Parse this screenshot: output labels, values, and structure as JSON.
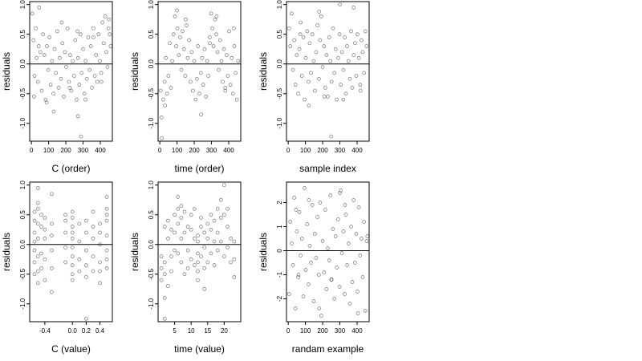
{
  "chart_data": [
    {
      "type": "scatter",
      "xlabel": "C (order)",
      "ylabel": "residuals",
      "xlim": [
        -10,
        470
      ],
      "ylim": [
        -1.3,
        1.05
      ],
      "xticks": [
        0,
        100,
        200,
        300,
        400
      ],
      "xtick_labels": [
        "0",
        "100",
        "200",
        "300",
        "400"
      ],
      "yticks": [
        1.0,
        0.5,
        0.0,
        -0.5,
        -1.0
      ],
      "ytick_labels": [
        "1.0",
        "0.5",
        "0.0",
        "-0.5",
        "-1.0"
      ],
      "hline": 0,
      "grid": false,
      "points": {
        "x": [
          5,
          12,
          18,
          25,
          30,
          38,
          45,
          52,
          60,
          68,
          75,
          82,
          90,
          98,
          105,
          112,
          120,
          128,
          135,
          142,
          150,
          158,
          165,
          172,
          180,
          188,
          195,
          202,
          210,
          218,
          225,
          232,
          240,
          248,
          255,
          262,
          270,
          278,
          285,
          292,
          300,
          308,
          315,
          322,
          330,
          338,
          345,
          352,
          360,
          368,
          375,
          382,
          390,
          398,
          405,
          412,
          420,
          428,
          435,
          442,
          450,
          455,
          460,
          15,
          42,
          88,
          130,
          176,
          222,
          268,
          314,
          360,
          406,
          448,
          270,
          288
        ],
        "y": [
          0.85,
          0.4,
          -0.2,
          0.6,
          0.1,
          -0.3,
          0.95,
          0.2,
          -0.45,
          0.5,
          0.15,
          -0.6,
          0.3,
          -0.1,
          0.45,
          -0.35,
          0.05,
          -0.5,
          0.25,
          -0.15,
          0.55,
          -0.4,
          0.1,
          -0.25,
          0.35,
          -0.55,
          0.2,
          -0.05,
          0.6,
          -0.3,
          0.15,
          -0.45,
          0.05,
          -0.2,
          0.4,
          -0.6,
          0.1,
          -0.35,
          0.5,
          -0.15,
          0.25,
          -0.5,
          0.05,
          -0.25,
          0.45,
          -0.1,
          0.3,
          -0.4,
          0.6,
          -0.2,
          0.15,
          -0.3,
          0.5,
          0.05,
          -0.15,
          0.7,
          0.35,
          0.8,
          0.2,
          -0.05,
          0.75,
          0.5,
          0.3,
          -0.55,
          0.3,
          -0.65,
          -0.8,
          0.7,
          -0.4,
          0.55,
          -0.6,
          0.45,
          -0.3,
          0.6,
          -0.88,
          -1.22
        ]
      }
    },
    {
      "type": "scatter",
      "xlabel": "time (order)",
      "ylabel": "residuals",
      "xlim": [
        -10,
        470
      ],
      "ylim": [
        -1.3,
        1.05
      ],
      "xticks": [
        0,
        100,
        200,
        300,
        400
      ],
      "xtick_labels": [
        "0",
        "100",
        "200",
        "300",
        "400"
      ],
      "yticks": [
        1.0,
        0.5,
        0.0,
        -0.5,
        -1.0
      ],
      "ytick_labels": [
        "1.0",
        "0.5",
        "0.0",
        "-0.5",
        "-1.0"
      ],
      "hline": 0,
      "grid": false,
      "points": {
        "x": [
          5,
          12,
          20,
          28,
          35,
          42,
          50,
          58,
          65,
          72,
          80,
          88,
          95,
          102,
          110,
          118,
          125,
          132,
          140,
          148,
          155,
          162,
          170,
          178,
          185,
          192,
          200,
          208,
          215,
          222,
          230,
          238,
          245,
          252,
          260,
          268,
          275,
          282,
          290,
          298,
          305,
          312,
          320,
          328,
          335,
          342,
          350,
          358,
          365,
          372,
          380,
          388,
          395,
          402,
          410,
          418,
          425,
          432,
          440,
          448,
          455,
          10,
          30,
          100,
          150,
          240,
          290,
          330,
          380,
          430
        ],
        "y": [
          -0.45,
          -1.25,
          -0.6,
          -0.3,
          0.1,
          -0.5,
          -0.2,
          0.35,
          -0.4,
          0.05,
          0.5,
          0.8,
          0.3,
          0.6,
          0.15,
          0.45,
          -0.1,
          0.55,
          0.25,
          -0.2,
          0.65,
          0.1,
          0.4,
          -0.3,
          0.2,
          -0.45,
          0.05,
          -0.6,
          -0.25,
          0.3,
          -0.5,
          -0.15,
          0.1,
          -0.35,
          0.25,
          -0.55,
          0.05,
          -0.2,
          0.45,
          0.85,
          0.6,
          0.3,
          0.75,
          0.5,
          0.2,
          -0.1,
          0.4,
          0.05,
          -0.3,
          0.25,
          -0.45,
          0.15,
          -0.2,
          0.55,
          -0.35,
          0.1,
          -0.5,
          0.3,
          -0.15,
          -0.6,
          0.05,
          -0.9,
          -0.7,
          0.9,
          0.75,
          -0.85,
          0.35,
          0.8,
          -0.4,
          0.6
        ]
      }
    },
    {
      "type": "scatter",
      "xlabel": "sample index",
      "ylabel": "residuals",
      "xlim": [
        -10,
        470
      ],
      "ylim": [
        -1.3,
        1.05
      ],
      "xticks": [
        0,
        100,
        200,
        300,
        400
      ],
      "xtick_labels": [
        "0",
        "100",
        "200",
        "300",
        "400"
      ],
      "yticks": [
        1.0,
        0.5,
        0.0,
        -0.5,
        -1.0
      ],
      "ytick_labels": [
        "1.0",
        "0.5",
        "0.0",
        "-0.5",
        "-1.0"
      ],
      "hline": 0,
      "grid": false,
      "points": {
        "x": [
          5,
          12,
          20,
          28,
          35,
          42,
          50,
          58,
          65,
          72,
          80,
          88,
          95,
          102,
          110,
          118,
          125,
          132,
          140,
          148,
          155,
          162,
          170,
          178,
          185,
          192,
          200,
          208,
          215,
          222,
          230,
          238,
          245,
          252,
          260,
          268,
          275,
          282,
          290,
          298,
          305,
          312,
          320,
          328,
          335,
          342,
          350,
          358,
          365,
          372,
          380,
          388,
          395,
          402,
          410,
          418,
          425,
          432,
          440,
          448,
          455,
          70,
          120,
          180,
          210,
          250,
          300,
          320,
          380,
          420
        ],
        "y": [
          0.6,
          0.3,
          0.85,
          -0.1,
          0.4,
          -0.35,
          0.15,
          -0.5,
          0.25,
          0.7,
          -0.2,
          0.45,
          -0.6,
          0.1,
          0.55,
          -0.3,
          0.35,
          -0.15,
          0.5,
          0.05,
          -0.45,
          0.2,
          0.65,
          -0.25,
          0.4,
          0.8,
          -0.05,
          0.3,
          -0.4,
          0.15,
          -0.55,
          0.45,
          0.05,
          -0.3,
          0.6,
          -0.15,
          0.25,
          -0.6,
          0.1,
          0.5,
          -0.35,
          0.2,
          -0.1,
          0.45,
          -0.5,
          0.3,
          0.05,
          -0.25,
          0.55,
          -0.4,
          0.15,
          0.35,
          -0.2,
          0.5,
          0.1,
          -0.35,
          0.4,
          0.2,
          -0.15,
          0.55,
          0.3,
          0.5,
          -0.7,
          0.88,
          -0.55,
          -1.22,
          1.0,
          -0.6,
          0.95,
          -0.45
        ]
      }
    },
    {
      "type": "scatter",
      "xlabel": "C (value)",
      "ylabel": "residuals",
      "xlim": [
        -0.62,
        0.58
      ],
      "ylim": [
        -1.3,
        1.05
      ],
      "xticks": [
        -0.4,
        0.0,
        0.2,
        0.4
      ],
      "xtick_labels": [
        "-0.4",
        "0.0",
        "0.2",
        "0.4"
      ],
      "yticks": [
        1.0,
        0.5,
        0.0,
        -0.5,
        -1.0
      ],
      "ytick_labels": [
        "1.0",
        "0.5",
        "0.0",
        "-0.5",
        "-1.0"
      ],
      "hline": 0,
      "grid": false,
      "points": {
        "x": [
          -0.55,
          -0.55,
          -0.55,
          -0.55,
          -0.55,
          -0.55,
          -0.55,
          -0.5,
          -0.5,
          -0.5,
          -0.5,
          -0.5,
          -0.5,
          -0.5,
          -0.5,
          -0.45,
          -0.45,
          -0.45,
          -0.45,
          -0.4,
          -0.4,
          -0.4,
          -0.4,
          -0.4,
          -0.3,
          -0.3,
          -0.3,
          -0.3,
          -0.3,
          -0.3,
          -0.1,
          -0.1,
          -0.1,
          -0.1,
          -0.1,
          0.0,
          0.0,
          0.0,
          0.0,
          0.0,
          0.0,
          0.0,
          0.0,
          0.0,
          0.0,
          0.1,
          0.1,
          0.1,
          0.1,
          0.2,
          0.2,
          0.2,
          0.2,
          0.2,
          0.3,
          0.3,
          0.3,
          0.3,
          0.3,
          0.4,
          0.4,
          0.4,
          0.4,
          0.4,
          0.4,
          0.5,
          0.5,
          0.5,
          0.5,
          0.5,
          0.5,
          0.5,
          0.5,
          0.2
        ],
        "y": [
          0.4,
          0.2,
          -0.1,
          -0.3,
          0.55,
          -0.5,
          0.05,
          0.95,
          0.7,
          0.35,
          -0.2,
          0.1,
          -0.45,
          0.6,
          -0.65,
          0.3,
          -0.15,
          0.5,
          -0.4,
          0.25,
          0.1,
          -0.25,
          -0.6,
          0.45,
          0.85,
          0.35,
          -0.1,
          -0.4,
          0.15,
          -0.8,
          0.5,
          0.2,
          -0.3,
          -0.05,
          0.4,
          0.55,
          0.3,
          0.1,
          -0.05,
          -0.2,
          -0.35,
          -0.5,
          -0.6,
          0.2,
          0.45,
          0.05,
          -0.25,
          0.35,
          -0.45,
          0.2,
          -0.1,
          -0.35,
          0.4,
          -0.55,
          0.55,
          0.1,
          -0.2,
          -0.45,
          0.3,
          0.2,
          0.0,
          -0.3,
          -0.45,
          0.35,
          -0.65,
          0.8,
          0.6,
          0.4,
          0.15,
          -0.1,
          -0.25,
          0.5,
          -0.4,
          -1.25
        ]
      }
    },
    {
      "type": "scatter",
      "xlabel": "time (value)",
      "ylabel": "residuals",
      "xlim": [
        0,
        25
      ],
      "ylim": [
        -1.3,
        1.05
      ],
      "xticks": [
        5,
        10,
        15,
        20
      ],
      "xtick_labels": [
        "5",
        "10",
        "15",
        "20"
      ],
      "yticks": [
        1.0,
        0.5,
        0.0,
        -0.5,
        -1.0
      ],
      "ytick_labels": [
        "1.0",
        "0.5",
        "0.0",
        "-0.5",
        "-1.0"
      ],
      "hline": 0,
      "grid": false,
      "points": {
        "x": [
          1,
          1,
          1,
          2,
          2,
          2,
          2,
          3,
          3,
          3,
          4,
          4,
          4,
          5,
          5,
          5,
          6,
          6,
          6,
          6,
          7,
          7,
          7,
          7,
          8,
          8,
          8,
          9,
          9,
          9,
          10,
          10,
          10,
          11,
          11,
          11,
          12,
          12,
          12,
          12,
          12,
          12,
          13,
          13,
          13,
          14,
          14,
          14,
          15,
          15,
          15,
          16,
          16,
          16,
          17,
          17,
          17,
          18,
          18,
          18,
          19,
          19,
          19,
          20,
          20,
          20,
          21,
          21,
          21,
          22,
          22,
          23,
          23,
          23,
          2,
          14
        ],
        "y": [
          -0.4,
          -0.6,
          -0.2,
          -0.5,
          0.3,
          -0.3,
          -0.9,
          -0.7,
          0.1,
          0.4,
          -0.2,
          0.25,
          -0.45,
          0.5,
          -0.1,
          0.2,
          0.8,
          0.6,
          0.35,
          -0.15,
          0.45,
          0.1,
          -0.3,
          0.65,
          0.2,
          -0.5,
          0.55,
          0.3,
          -0.1,
          -0.4,
          0.25,
          -0.25,
          0.5,
          0.1,
          -0.35,
          0.6,
          0.15,
          0.05,
          -0.15,
          -0.3,
          -0.45,
          -0.6,
          0.3,
          -0.2,
          0.45,
          -0.05,
          -0.4,
          0.2,
          0.35,
          -0.3,
          0.1,
          0.5,
          -0.15,
          0.25,
          0.4,
          0.05,
          -0.35,
          0.6,
          0.2,
          -0.1,
          0.75,
          0.45,
          0.05,
          1.0,
          0.5,
          -0.2,
          0.3,
          0.6,
          -0.05,
          0.1,
          -0.3,
          0.05,
          -0.25,
          -0.55,
          -1.25,
          -0.75
        ]
      }
    },
    {
      "type": "scatter",
      "xlabel": "randam example",
      "ylabel": "residuals",
      "xlim": [
        -10,
        470
      ],
      "ylim": [
        -2.95,
        2.85
      ],
      "xticks": [
        0,
        100,
        200,
        300,
        400
      ],
      "xtick_labels": [
        "0",
        "100",
        "200",
        "300",
        "400"
      ],
      "yticks": [
        2,
        1,
        0,
        -1,
        -2
      ],
      "ytick_labels": [
        "2",
        "1",
        "0",
        "-1",
        "-2"
      ],
      "hline": 0,
      "grid": false,
      "points": {
        "x": [
          5,
          12,
          20,
          28,
          35,
          42,
          50,
          58,
          65,
          72,
          80,
          88,
          95,
          102,
          110,
          118,
          125,
          132,
          140,
          148,
          155,
          162,
          170,
          178,
          185,
          192,
          200,
          208,
          215,
          222,
          230,
          238,
          245,
          252,
          260,
          268,
          275,
          282,
          290,
          298,
          305,
          312,
          320,
          328,
          335,
          342,
          350,
          358,
          365,
          372,
          380,
          388,
          395,
          402,
          410,
          418,
          425,
          432,
          440,
          448,
          455,
          45,
          180,
          300,
          405,
          120,
          250,
          330,
          60,
          460
        ],
        "y": [
          -1.8,
          1.2,
          0.3,
          -0.6,
          2.2,
          -2.4,
          0.8,
          -1.1,
          1.6,
          -0.2,
          0.5,
          -1.9,
          2.6,
          -0.8,
          1.1,
          -1.4,
          0.2,
          -0.5,
          1.9,
          -2.1,
          0.7,
          -0.3,
          1.4,
          -1.0,
          2.0,
          -2.7,
          0.4,
          -0.9,
          1.7,
          -1.6,
          0.1,
          -0.4,
          2.3,
          -1.2,
          0.9,
          -2.0,
          0.6,
          -0.7,
          1.3,
          -1.5,
          2.5,
          -0.1,
          0.8,
          -1.8,
          1.5,
          -0.6,
          0.3,
          -2.2,
          1.0,
          -1.3,
          2.1,
          -0.5,
          0.7,
          -1.7,
          1.8,
          -0.2,
          0.5,
          -1.1,
          1.2,
          -2.5,
          0.4,
          1.7,
          -2.4,
          2.4,
          -2.6,
          2.1,
          -1.2,
          1.9,
          -1.0,
          0.6
        ]
      }
    }
  ]
}
